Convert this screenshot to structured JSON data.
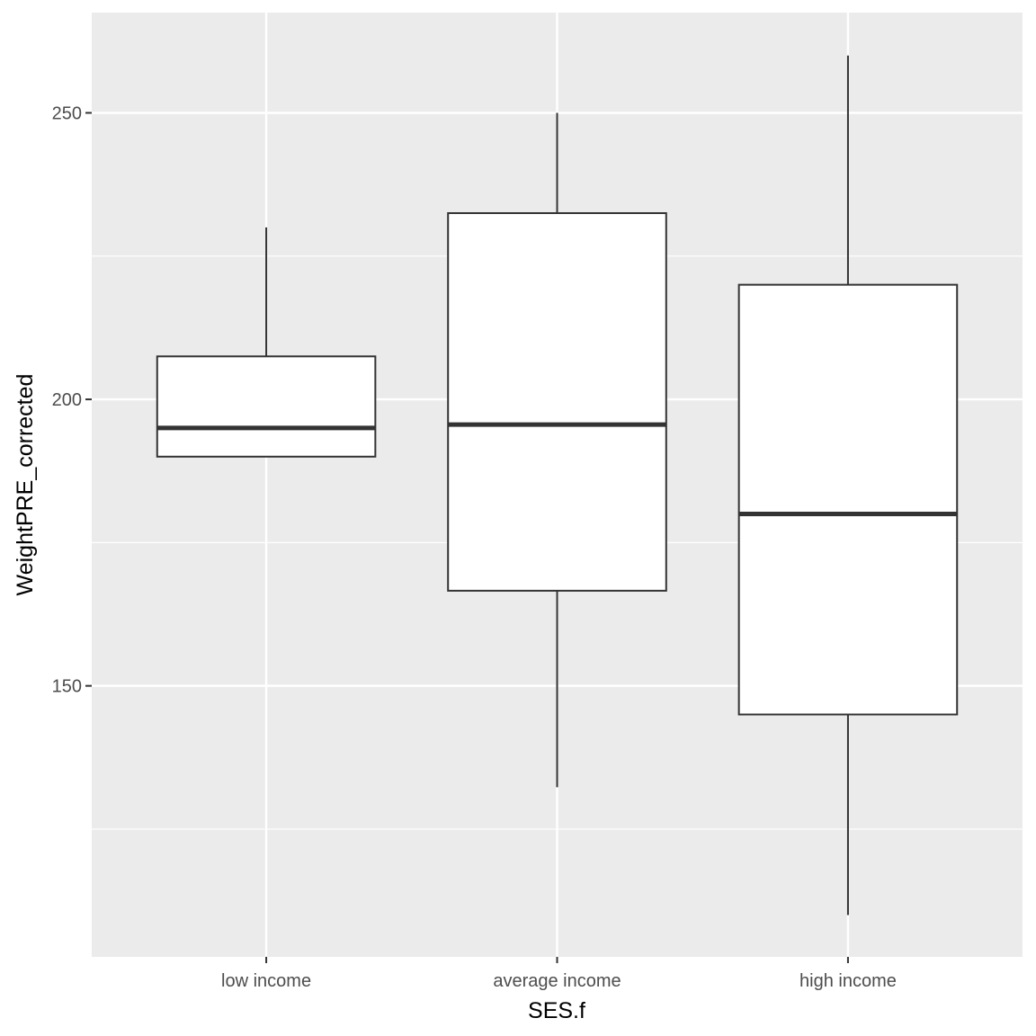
{
  "chart_data": {
    "type": "boxplot",
    "x_label": "SES.f",
    "y_label": "WeightPRE_corrected",
    "categories": [
      "low income",
      "average income",
      "high income"
    ],
    "min": [
      190,
      132.3,
      110
    ],
    "q1": [
      190,
      166.6,
      145
    ],
    "median": [
      195,
      195.6,
      180
    ],
    "q3": [
      207.5,
      232.5,
      220
    ],
    "max": [
      230,
      250,
      260
    ],
    "ylim": [
      102.7,
      267.5
    ],
    "yticks": [
      150,
      200,
      250
    ],
    "minor_yticks": [
      125,
      175,
      225
    ],
    "grid": true,
    "box_fill": "#ffffff",
    "box_stroke": "#333333",
    "panel_color": "#ebebeb"
  }
}
